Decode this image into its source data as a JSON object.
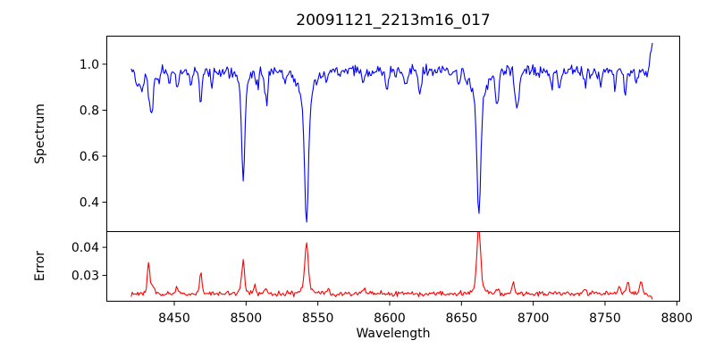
{
  "chart_data": {
    "type": "line",
    "title": "20091121_2213m16_017",
    "xlabel": "Wavelength",
    "grid": false,
    "legend": false,
    "background": "#ffffff",
    "axis_color": "#000000",
    "xlim": [
      8403,
      8802
    ],
    "x_range": [
      8420,
      8783
    ],
    "x_step": 0.75,
    "seed": 42,
    "x_ticks": [
      {
        "value": 8450,
        "label": "8450"
      },
      {
        "value": 8500,
        "label": "8500"
      },
      {
        "value": 8550,
        "label": "8550"
      },
      {
        "value": 8600,
        "label": "8600"
      },
      {
        "value": 8650,
        "label": "8650"
      },
      {
        "value": 8700,
        "label": "8700"
      },
      {
        "value": 8750,
        "label": "8750"
      },
      {
        "value": 8800,
        "label": "8800"
      }
    ],
    "panels": [
      {
        "name": "spectrum",
        "ylabel": "Spectrum",
        "line_color": "#0000ff",
        "ylim": [
          0.272,
          1.122
        ],
        "y_ticks": [
          {
            "value": 0.4,
            "label": "0.4"
          },
          {
            "value": 0.6,
            "label": "0.6"
          },
          {
            "value": 0.8,
            "label": "0.8"
          },
          {
            "value": 1.0,
            "label": "1.0"
          }
        ],
        "continuum": 0.97,
        "noise_amp": 0.026,
        "absorption_lines": [
          {
            "center": 8424.0,
            "depth": 0.07,
            "width": 0.9
          },
          {
            "center": 8427.5,
            "depth": 0.09,
            "width": 1.0
          },
          {
            "center": 8433.8,
            "depth": 0.19,
            "width": 1.5
          },
          {
            "center": 8439.0,
            "depth": 0.06,
            "width": 0.9
          },
          {
            "center": 8446.5,
            "depth": 0.05,
            "width": 0.9
          },
          {
            "center": 8452.0,
            "depth": 0.07,
            "width": 0.9
          },
          {
            "center": 8462.0,
            "depth": 0.05,
            "width": 0.9
          },
          {
            "center": 8468.5,
            "depth": 0.13,
            "width": 1.1
          },
          {
            "center": 8476.0,
            "depth": 0.05,
            "width": 0.9
          },
          {
            "center": 8498.0,
            "depth": 0.4,
            "width": 1.1,
            "wing_depth": 0.08,
            "wing_width": 3.5
          },
          {
            "center": 8508.0,
            "depth": 0.06,
            "width": 0.9
          },
          {
            "center": 8514.0,
            "depth": 0.13,
            "width": 1.1
          },
          {
            "center": 8527.0,
            "depth": 0.05,
            "width": 0.9
          },
          {
            "center": 8542.1,
            "depth": 0.52,
            "width": 1.3,
            "wing_depth": 0.14,
            "wing_width": 5.0
          },
          {
            "center": 8556.0,
            "depth": 0.05,
            "width": 0.9
          },
          {
            "center": 8582.0,
            "depth": 0.06,
            "width": 0.9
          },
          {
            "center": 8598.0,
            "depth": 0.09,
            "width": 1.0
          },
          {
            "center": 8611.0,
            "depth": 0.07,
            "width": 0.9
          },
          {
            "center": 8621.0,
            "depth": 0.1,
            "width": 1.0
          },
          {
            "center": 8648.0,
            "depth": 0.06,
            "width": 0.9
          },
          {
            "center": 8662.1,
            "depth": 0.5,
            "width": 1.3,
            "wing_depth": 0.13,
            "wing_width": 5.0
          },
          {
            "center": 8674.8,
            "depth": 0.14,
            "width": 1.1
          },
          {
            "center": 8688.6,
            "depth": 0.19,
            "width": 1.3
          },
          {
            "center": 8713.0,
            "depth": 0.06,
            "width": 0.9
          },
          {
            "center": 8718.0,
            "depth": 0.07,
            "width": 0.9
          },
          {
            "center": 8736.0,
            "depth": 0.06,
            "width": 0.9
          },
          {
            "center": 8747.0,
            "depth": 0.05,
            "width": 0.9
          },
          {
            "center": 8757.0,
            "depth": 0.06,
            "width": 0.9
          },
          {
            "center": 8764.0,
            "depth": 0.09,
            "width": 1.0
          },
          {
            "center": 8772.0,
            "depth": 0.05,
            "width": 0.9
          }
        ],
        "edge_rise": {
          "start": 8780,
          "peak": 1.09
        }
      },
      {
        "name": "error",
        "ylabel": "Error",
        "line_color": "#ff0000",
        "ylim": [
          0.0208,
          0.0456
        ],
        "y_ticks": [
          {
            "value": 0.03,
            "label": "0.03"
          },
          {
            "value": 0.04,
            "label": "0.04"
          }
        ],
        "baseline": 0.0235,
        "noise_amp": 0.0009,
        "peaks": [
          {
            "center": 8432.0,
            "height": 0.011,
            "width": 0.8
          },
          {
            "center": 8434.5,
            "height": 0.0025,
            "width": 1.5
          },
          {
            "center": 8452.0,
            "height": 0.0022,
            "width": 0.8
          },
          {
            "center": 8468.5,
            "height": 0.0075,
            "width": 0.8
          },
          {
            "center": 8498.0,
            "height": 0.0105,
            "width": 0.9,
            "wing_height": 0.0015,
            "wing_width": 3.0
          },
          {
            "center": 8506.0,
            "height": 0.0035,
            "width": 0.8
          },
          {
            "center": 8514.0,
            "height": 0.0018,
            "width": 0.8
          },
          {
            "center": 8542.1,
            "height": 0.0155,
            "width": 1.2,
            "wing_height": 0.002,
            "wing_width": 4.0
          },
          {
            "center": 8557.0,
            "height": 0.0018,
            "width": 0.8
          },
          {
            "center": 8582.0,
            "height": 0.0015,
            "width": 0.8
          },
          {
            "center": 8662.1,
            "height": 0.0212,
            "width": 1.3,
            "wing_height": 0.002,
            "wing_width": 4.0
          },
          {
            "center": 8675.0,
            "height": 0.002,
            "width": 0.9
          },
          {
            "center": 8686.0,
            "height": 0.0042,
            "width": 0.9
          },
          {
            "center": 8736.0,
            "height": 0.0018,
            "width": 0.8
          },
          {
            "center": 8760.0,
            "height": 0.003,
            "width": 0.9
          },
          {
            "center": 8766.0,
            "height": 0.004,
            "width": 0.8
          },
          {
            "center": 8775.0,
            "height": 0.0042,
            "width": 1.0
          }
        ],
        "edge_drop": {
          "start": 8778,
          "end_value": 0.0215
        }
      }
    ]
  }
}
